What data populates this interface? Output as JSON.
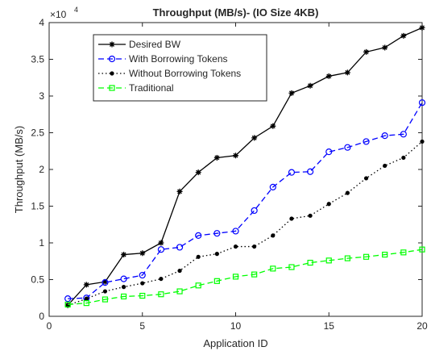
{
  "chart_data": {
    "type": "line",
    "title": "Throughput (MB/s)- (IO Size 4KB)",
    "xlabel": "Application ID",
    "ylabel": "Throughput (MB/s)",
    "y_exponent_label": "×10",
    "y_exponent_power": "4",
    "xlim": [
      0,
      20
    ],
    "ylim": [
      0,
      40000
    ],
    "xticks": [
      0,
      5,
      10,
      15,
      20
    ],
    "xtick_labels": [
      "0",
      "5",
      "10",
      "15",
      "20"
    ],
    "yticks": [
      0,
      5000,
      10000,
      15000,
      20000,
      25000,
      30000,
      35000,
      40000
    ],
    "ytick_labels": [
      "0",
      "0.5",
      "1",
      "1.5",
      "2",
      "2.5",
      "3",
      "3.5",
      "4"
    ],
    "grid": false,
    "legend_position": "top-left",
    "x": [
      1,
      2,
      3,
      4,
      5,
      6,
      7,
      8,
      9,
      10,
      11,
      12,
      13,
      14,
      15,
      16,
      17,
      18,
      19,
      20
    ],
    "series": [
      {
        "name": "Desired BW",
        "color": "#000000",
        "line_style": "solid",
        "marker": "star",
        "values": [
          1500,
          4300,
          4700,
          8400,
          8600,
          10000,
          17000,
          19600,
          21600,
          21900,
          24300,
          25900,
          30400,
          31400,
          32700,
          33200,
          36000,
          36600,
          38200,
          39300
        ]
      },
      {
        "name": "With Borrowing Tokens",
        "color": "#0000ff",
        "line_style": "dashed",
        "marker": "circle",
        "values": [
          2400,
          2500,
          4600,
          5100,
          5600,
          9100,
          9400,
          11000,
          11300,
          11600,
          14400,
          17600,
          19600,
          19700,
          22400,
          23000,
          23800,
          24600,
          24800,
          29100
        ]
      },
      {
        "name": "Without Borrowing Tokens",
        "color": "#000000",
        "line_style": "dotted",
        "marker": "dot",
        "values": [
          1500,
          2400,
          3400,
          4000,
          4500,
          5100,
          6200,
          8100,
          8500,
          9500,
          9500,
          11000,
          13300,
          13700,
          15300,
          16800,
          18800,
          20500,
          21600,
          23800
        ]
      },
      {
        "name": "Traditional",
        "color": "#00ff00",
        "line_style": "dashed",
        "marker": "square",
        "values": [
          1600,
          1800,
          2300,
          2700,
          2800,
          3000,
          3400,
          4200,
          4800,
          5400,
          5700,
          6500,
          6700,
          7300,
          7600,
          7900,
          8100,
          8400,
          8700,
          9100
        ]
      }
    ]
  }
}
